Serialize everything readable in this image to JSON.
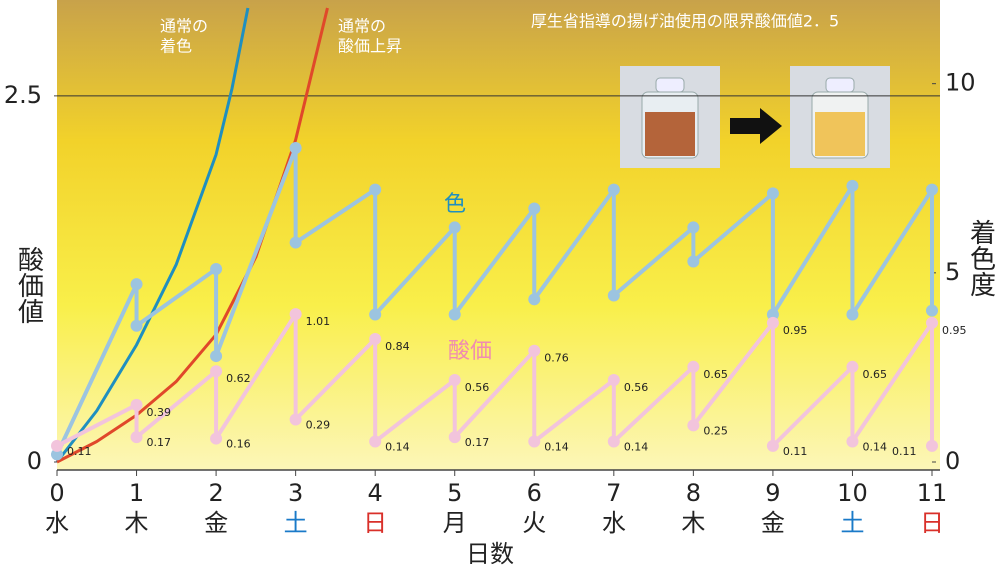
{
  "chart_data": {
    "type": "line",
    "title": "厚生省指導の揚げ油使用の限界酸価値2．5",
    "x_label": "日数",
    "y_label": "酸価値",
    "y2_label": "着色度",
    "xlim": [
      0,
      11
    ],
    "xticks": [
      0,
      1,
      2,
      3,
      4,
      5,
      6,
      7,
      8,
      9,
      10,
      11
    ],
    "weekdays": [
      "水",
      "木",
      "金",
      "土",
      "日",
      "月",
      "火",
      "水",
      "木",
      "金",
      "土",
      "日"
    ],
    "weekday_colors": [
      "#222",
      "#222",
      "#222",
      "#1a7ac8",
      "#d9302a",
      "#222",
      "#222",
      "#222",
      "#222",
      "#222",
      "#1a7ac8",
      "#d9302a"
    ],
    "ylim": [
      0,
      3.1
    ],
    "yticks": [
      0,
      2.5
    ],
    "y2lim": [
      0,
      12
    ],
    "y2ticks": [
      0,
      5,
      10
    ],
    "reference_line": 2.5,
    "series": [
      {
        "name": "色",
        "color": "#9cc4e0",
        "axis": "y2",
        "markers": true,
        "x": [
          0,
          1,
          1,
          2,
          2,
          3,
          3,
          4,
          4,
          5,
          5,
          6,
          6,
          7,
          7,
          8,
          8,
          9,
          9,
          10,
          10,
          11,
          11
        ],
        "values": [
          0.2,
          4.7,
          3.6,
          5.1,
          2.8,
          8.3,
          5.8,
          7.2,
          3.9,
          6.2,
          3.9,
          6.7,
          4.3,
          7.2,
          4.4,
          6.2,
          5.3,
          7.1,
          3.9,
          7.3,
          3.9,
          7.2,
          4.0
        ]
      },
      {
        "name": "酸価",
        "color": "#f2c4dc",
        "axis": "y",
        "markers": true,
        "data_labels": true,
        "x": [
          0,
          1,
          1,
          2,
          2,
          3,
          3,
          4,
          4,
          5,
          5,
          6,
          6,
          7,
          7,
          8,
          8,
          9,
          9,
          10,
          10,
          11,
          11
        ],
        "values": [
          0.11,
          0.39,
          0.17,
          0.62,
          0.16,
          1.01,
          0.29,
          0.84,
          0.14,
          0.56,
          0.17,
          0.76,
          0.14,
          0.56,
          0.14,
          0.65,
          0.25,
          0.95,
          0.11,
          0.65,
          0.14,
          0.95,
          0.11
        ]
      },
      {
        "label": [
          "通常の",
          "着色"
        ],
        "color": "#1f8fc0",
        "axis": "y",
        "markers": false,
        "x": [
          0,
          0.5,
          1,
          1.5,
          2,
          2.2,
          2.4
        ],
        "values": [
          0,
          0.35,
          0.8,
          1.35,
          2.1,
          2.55,
          3.1
        ]
      },
      {
        "label": [
          "通常の",
          "酸価上昇"
        ],
        "color": "#e0482a",
        "axis": "y",
        "markers": false,
        "x": [
          0,
          0.5,
          1,
          1.5,
          2,
          2.5,
          3,
          3.4
        ],
        "values": [
          0,
          0.14,
          0.32,
          0.55,
          0.87,
          1.4,
          2.2,
          3.1
        ]
      }
    ]
  }
}
